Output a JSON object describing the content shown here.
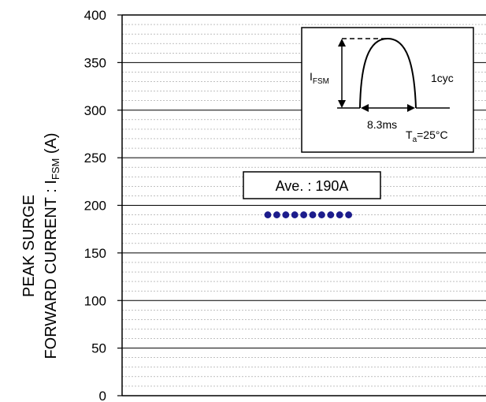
{
  "chart_data": {
    "type": "scatter",
    "ylim": [
      0,
      400
    ],
    "y_major_step": 50,
    "y_minor_step": 10,
    "y_ticks": [
      "0",
      "50",
      "100",
      "150",
      "200",
      "250",
      "300",
      "350",
      "400"
    ],
    "ylabel_line1": "PEAK SURGE",
    "ylabel_line2_prefix": "FORWARD CURRENT : I",
    "ylabel_line2_sub": "FSM",
    "ylabel_line2_suffix": " (A)",
    "points": [
      190,
      190,
      190,
      190,
      190,
      190,
      190,
      190,
      190,
      190
    ],
    "annotation": "Ave. : 190A",
    "point_color": "#1c1c8c",
    "grid": true,
    "inset": {
      "ifsm_main": "I",
      "ifsm_sub": "FSM",
      "cycles": "1cyc",
      "period": "8.3ms",
      "ta_main": "T",
      "ta_sub": "a",
      "ta_value": "=25°C"
    }
  }
}
